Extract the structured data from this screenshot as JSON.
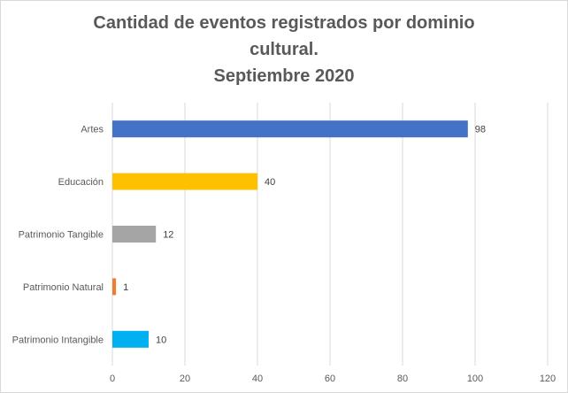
{
  "chart_data": {
    "type": "bar",
    "orientation": "horizontal",
    "title_lines": [
      "Cantidad de eventos registrados por dominio",
      "cultural.",
      "Septiembre 2020"
    ],
    "categories": [
      "Artes",
      "Educación",
      "Patrimonio Tangible",
      "Patrimonio Natural",
      "Patrimonio Intangible"
    ],
    "values": [
      98,
      40,
      12,
      1,
      10
    ],
    "data_labels": [
      "98",
      "40",
      "12",
      "1",
      "10"
    ],
    "bar_colors": [
      "#4472c4",
      "#ffc000",
      "#a5a5a5",
      "#ed7d31",
      "#00b0f0"
    ],
    "xlim": [
      0,
      120
    ],
    "xticks": [
      0,
      20,
      40,
      60,
      80,
      100,
      120
    ],
    "grid": true,
    "legend": "none",
    "xlabel": "",
    "ylabel": ""
  }
}
